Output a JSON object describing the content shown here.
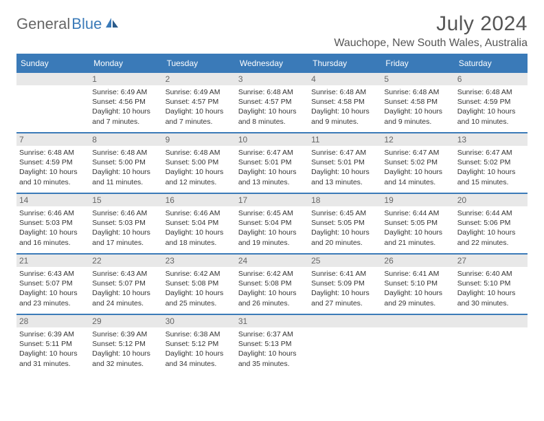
{
  "logo": {
    "text1": "General",
    "text2": "Blue"
  },
  "title": "July 2024",
  "location": "Wauchope, New South Wales, Australia",
  "weekdays": [
    "Sunday",
    "Monday",
    "Tuesday",
    "Wednesday",
    "Thursday",
    "Friday",
    "Saturday"
  ],
  "colors": {
    "header_bg": "#3a7ab8",
    "header_text": "#ffffff",
    "daynum_bg": "#e8e8e8",
    "border": "#3a7ab8",
    "body_text": "#333333"
  },
  "weeks": [
    [
      null,
      {
        "n": "1",
        "sr": "Sunrise: 6:49 AM",
        "ss": "Sunset: 4:56 PM",
        "d1": "Daylight: 10 hours",
        "d2": "and 7 minutes."
      },
      {
        "n": "2",
        "sr": "Sunrise: 6:49 AM",
        "ss": "Sunset: 4:57 PM",
        "d1": "Daylight: 10 hours",
        "d2": "and 7 minutes."
      },
      {
        "n": "3",
        "sr": "Sunrise: 6:48 AM",
        "ss": "Sunset: 4:57 PM",
        "d1": "Daylight: 10 hours",
        "d2": "and 8 minutes."
      },
      {
        "n": "4",
        "sr": "Sunrise: 6:48 AM",
        "ss": "Sunset: 4:58 PM",
        "d1": "Daylight: 10 hours",
        "d2": "and 9 minutes."
      },
      {
        "n": "5",
        "sr": "Sunrise: 6:48 AM",
        "ss": "Sunset: 4:58 PM",
        "d1": "Daylight: 10 hours",
        "d2": "and 9 minutes."
      },
      {
        "n": "6",
        "sr": "Sunrise: 6:48 AM",
        "ss": "Sunset: 4:59 PM",
        "d1": "Daylight: 10 hours",
        "d2": "and 10 minutes."
      }
    ],
    [
      {
        "n": "7",
        "sr": "Sunrise: 6:48 AM",
        "ss": "Sunset: 4:59 PM",
        "d1": "Daylight: 10 hours",
        "d2": "and 10 minutes."
      },
      {
        "n": "8",
        "sr": "Sunrise: 6:48 AM",
        "ss": "Sunset: 5:00 PM",
        "d1": "Daylight: 10 hours",
        "d2": "and 11 minutes."
      },
      {
        "n": "9",
        "sr": "Sunrise: 6:48 AM",
        "ss": "Sunset: 5:00 PM",
        "d1": "Daylight: 10 hours",
        "d2": "and 12 minutes."
      },
      {
        "n": "10",
        "sr": "Sunrise: 6:47 AM",
        "ss": "Sunset: 5:01 PM",
        "d1": "Daylight: 10 hours",
        "d2": "and 13 minutes."
      },
      {
        "n": "11",
        "sr": "Sunrise: 6:47 AM",
        "ss": "Sunset: 5:01 PM",
        "d1": "Daylight: 10 hours",
        "d2": "and 13 minutes."
      },
      {
        "n": "12",
        "sr": "Sunrise: 6:47 AM",
        "ss": "Sunset: 5:02 PM",
        "d1": "Daylight: 10 hours",
        "d2": "and 14 minutes."
      },
      {
        "n": "13",
        "sr": "Sunrise: 6:47 AM",
        "ss": "Sunset: 5:02 PM",
        "d1": "Daylight: 10 hours",
        "d2": "and 15 minutes."
      }
    ],
    [
      {
        "n": "14",
        "sr": "Sunrise: 6:46 AM",
        "ss": "Sunset: 5:03 PM",
        "d1": "Daylight: 10 hours",
        "d2": "and 16 minutes."
      },
      {
        "n": "15",
        "sr": "Sunrise: 6:46 AM",
        "ss": "Sunset: 5:03 PM",
        "d1": "Daylight: 10 hours",
        "d2": "and 17 minutes."
      },
      {
        "n": "16",
        "sr": "Sunrise: 6:46 AM",
        "ss": "Sunset: 5:04 PM",
        "d1": "Daylight: 10 hours",
        "d2": "and 18 minutes."
      },
      {
        "n": "17",
        "sr": "Sunrise: 6:45 AM",
        "ss": "Sunset: 5:04 PM",
        "d1": "Daylight: 10 hours",
        "d2": "and 19 minutes."
      },
      {
        "n": "18",
        "sr": "Sunrise: 6:45 AM",
        "ss": "Sunset: 5:05 PM",
        "d1": "Daylight: 10 hours",
        "d2": "and 20 minutes."
      },
      {
        "n": "19",
        "sr": "Sunrise: 6:44 AM",
        "ss": "Sunset: 5:05 PM",
        "d1": "Daylight: 10 hours",
        "d2": "and 21 minutes."
      },
      {
        "n": "20",
        "sr": "Sunrise: 6:44 AM",
        "ss": "Sunset: 5:06 PM",
        "d1": "Daylight: 10 hours",
        "d2": "and 22 minutes."
      }
    ],
    [
      {
        "n": "21",
        "sr": "Sunrise: 6:43 AM",
        "ss": "Sunset: 5:07 PM",
        "d1": "Daylight: 10 hours",
        "d2": "and 23 minutes."
      },
      {
        "n": "22",
        "sr": "Sunrise: 6:43 AM",
        "ss": "Sunset: 5:07 PM",
        "d1": "Daylight: 10 hours",
        "d2": "and 24 minutes."
      },
      {
        "n": "23",
        "sr": "Sunrise: 6:42 AM",
        "ss": "Sunset: 5:08 PM",
        "d1": "Daylight: 10 hours",
        "d2": "and 25 minutes."
      },
      {
        "n": "24",
        "sr": "Sunrise: 6:42 AM",
        "ss": "Sunset: 5:08 PM",
        "d1": "Daylight: 10 hours",
        "d2": "and 26 minutes."
      },
      {
        "n": "25",
        "sr": "Sunrise: 6:41 AM",
        "ss": "Sunset: 5:09 PM",
        "d1": "Daylight: 10 hours",
        "d2": "and 27 minutes."
      },
      {
        "n": "26",
        "sr": "Sunrise: 6:41 AM",
        "ss": "Sunset: 5:10 PM",
        "d1": "Daylight: 10 hours",
        "d2": "and 29 minutes."
      },
      {
        "n": "27",
        "sr": "Sunrise: 6:40 AM",
        "ss": "Sunset: 5:10 PM",
        "d1": "Daylight: 10 hours",
        "d2": "and 30 minutes."
      }
    ],
    [
      {
        "n": "28",
        "sr": "Sunrise: 6:39 AM",
        "ss": "Sunset: 5:11 PM",
        "d1": "Daylight: 10 hours",
        "d2": "and 31 minutes."
      },
      {
        "n": "29",
        "sr": "Sunrise: 6:39 AM",
        "ss": "Sunset: 5:12 PM",
        "d1": "Daylight: 10 hours",
        "d2": "and 32 minutes."
      },
      {
        "n": "30",
        "sr": "Sunrise: 6:38 AM",
        "ss": "Sunset: 5:12 PM",
        "d1": "Daylight: 10 hours",
        "d2": "and 34 minutes."
      },
      {
        "n": "31",
        "sr": "Sunrise: 6:37 AM",
        "ss": "Sunset: 5:13 PM",
        "d1": "Daylight: 10 hours",
        "d2": "and 35 minutes."
      },
      null,
      null,
      null
    ]
  ]
}
